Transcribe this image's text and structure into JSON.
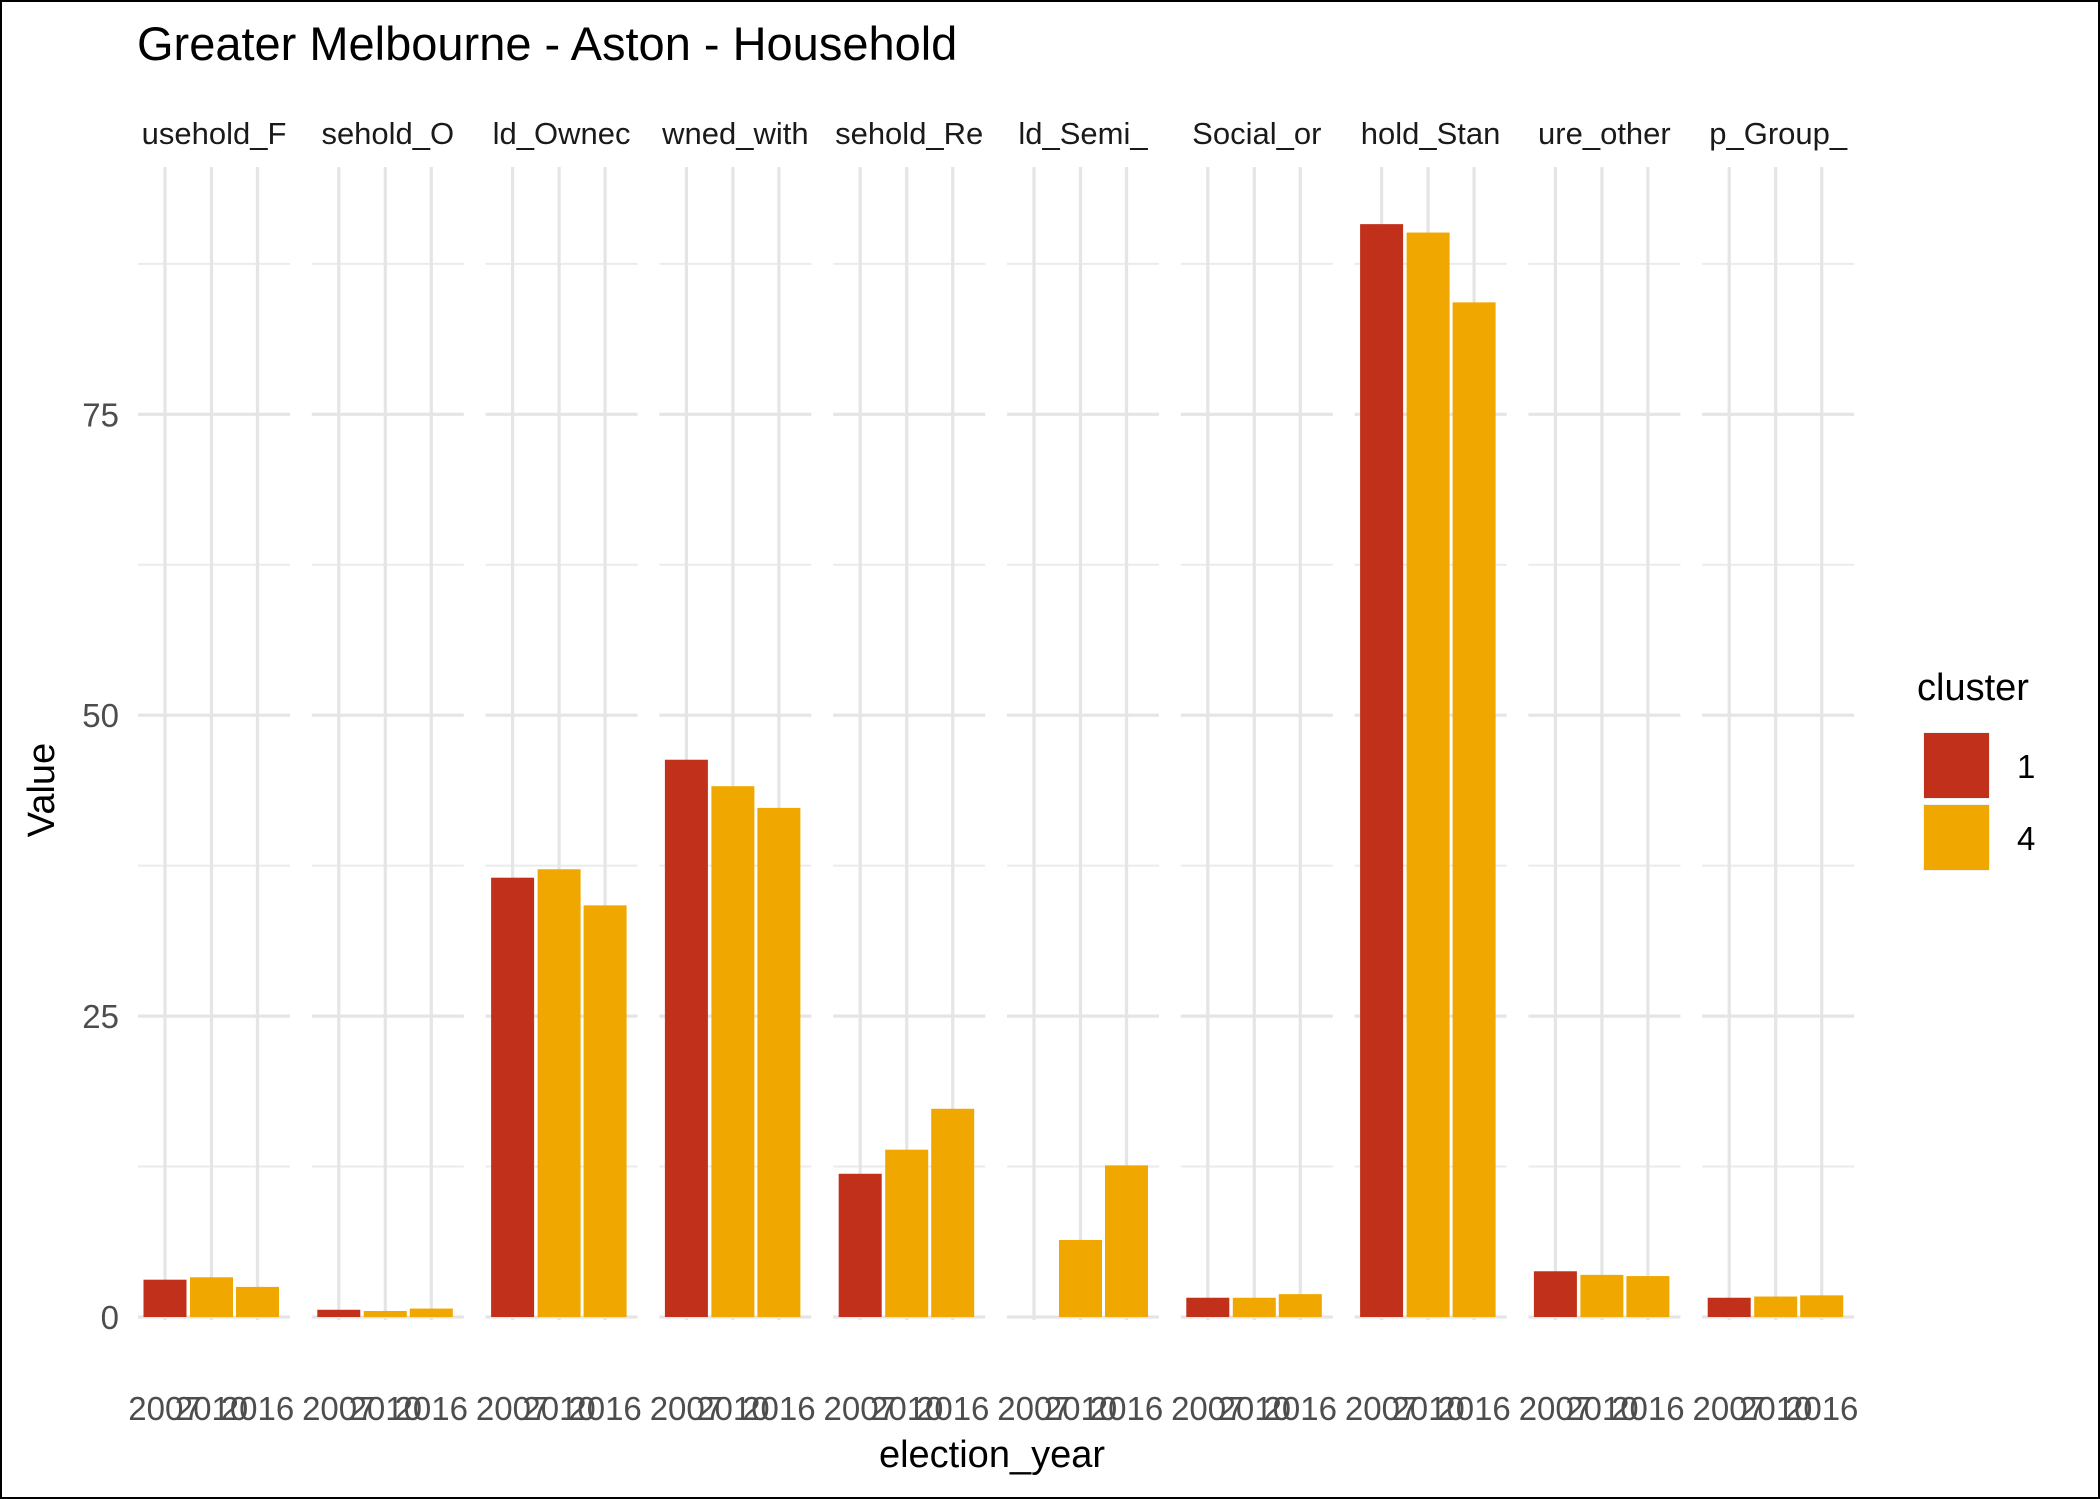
{
  "chart_data": {
    "type": "bar",
    "title": "Greater Melbourne - Aston - Household",
    "xlabel": "election_year",
    "ylabel": "Value",
    "ylim": [
      0,
      93
    ],
    "y_ticks": [
      0,
      25,
      50,
      75
    ],
    "grid": true,
    "legend": {
      "title": "cluster",
      "position": "right",
      "entries": [
        {
          "label": "1",
          "color": "#C0301A"
        },
        {
          "label": "4",
          "color": "#F0A800"
        }
      ]
    },
    "categories": [
      "2007",
      "2010",
      "2016"
    ],
    "facets": [
      {
        "label": "usehold_F",
        "values": [
          3.1,
          3.3,
          2.5
        ],
        "clusters": [
          "1",
          "4",
          "4"
        ]
      },
      {
        "label": "sehold_O",
        "values": [
          0.6,
          0.5,
          0.7
        ],
        "clusters": [
          "1",
          "4",
          "4"
        ]
      },
      {
        "label": "ld_Ownec",
        "values": [
          36.5,
          37.2,
          34.2
        ],
        "clusters": [
          "1",
          "4",
          "4"
        ]
      },
      {
        "label": "wned_with",
        "values": [
          46.3,
          44.1,
          42.3
        ],
        "clusters": [
          "1",
          "4",
          "4"
        ]
      },
      {
        "label": "sehold_Re",
        "values": [
          11.9,
          13.9,
          17.3
        ],
        "clusters": [
          "1",
          "4",
          "4"
        ]
      },
      {
        "label": "ld_Semi_",
        "values": [
          null,
          6.4,
          12.6
        ],
        "clusters": [
          "1",
          "4",
          "4"
        ]
      },
      {
        "label": "Social_or",
        "values": [
          1.6,
          1.6,
          1.9
        ],
        "clusters": [
          "1",
          "4",
          "4"
        ]
      },
      {
        "label": "hold_Stan",
        "values": [
          90.8,
          90.1,
          84.3
        ],
        "clusters": [
          "1",
          "4",
          "4"
        ]
      },
      {
        "label": "ure_other",
        "values": [
          3.8,
          3.5,
          3.4
        ],
        "clusters": [
          "1",
          "4",
          "4"
        ]
      },
      {
        "label": "p_Group_",
        "values": [
          1.6,
          1.7,
          1.8
        ],
        "clusters": [
          "1",
          "4",
          "4"
        ]
      }
    ]
  }
}
